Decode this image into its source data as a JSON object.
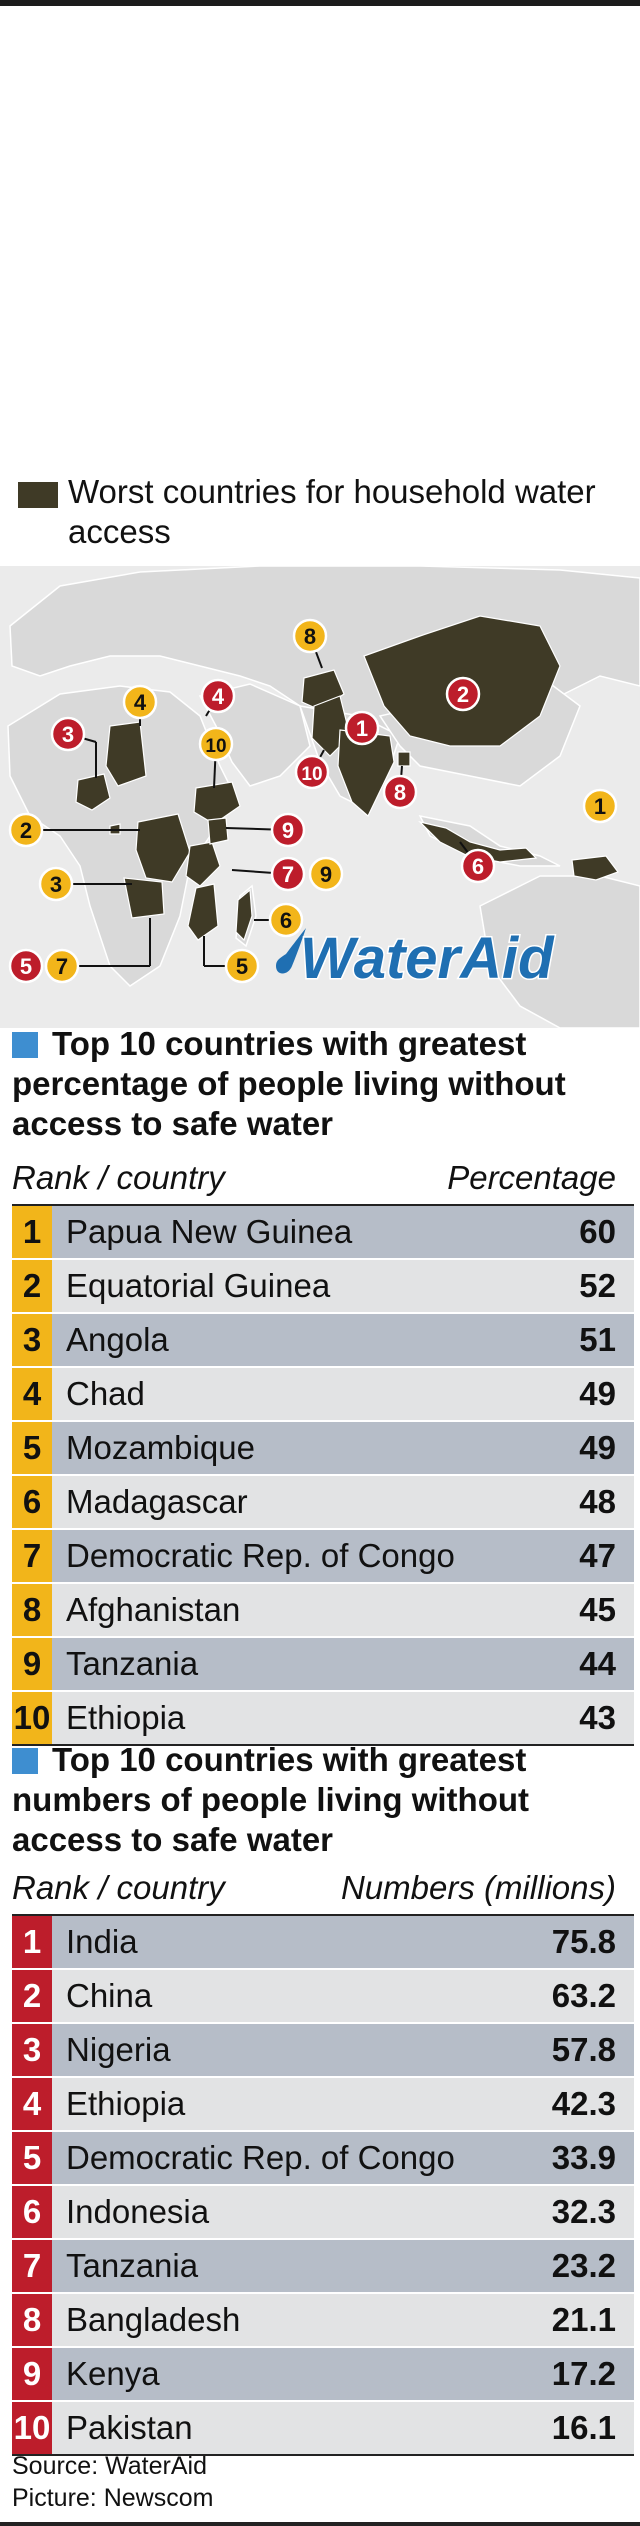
{
  "legend": {
    "text": "Worst countries for household water access",
    "swatch_color": "#3f3a26"
  },
  "logo": {
    "text": "WaterAid",
    "color": "#1f6fb2"
  },
  "map_markers": [
    {
      "label": "1",
      "color": "yellow"
    },
    {
      "label": "2",
      "color": "red"
    },
    {
      "label": "3",
      "color": "red"
    },
    {
      "label": "4",
      "color": "yellow"
    },
    {
      "label": "4",
      "color": "red"
    },
    {
      "label": "10",
      "color": "yellow"
    },
    {
      "label": "8",
      "color": "yellow"
    },
    {
      "label": "1",
      "color": "red"
    },
    {
      "label": "10",
      "color": "red"
    },
    {
      "label": "8",
      "color": "red"
    },
    {
      "label": "2",
      "color": "yellow"
    },
    {
      "label": "9",
      "color": "red"
    },
    {
      "label": "3",
      "color": "yellow"
    },
    {
      "label": "7",
      "color": "red"
    },
    {
      "label": "9",
      "color": "yellow"
    },
    {
      "label": "6",
      "color": "yellow"
    },
    {
      "label": "6",
      "color": "red"
    },
    {
      "label": "5",
      "color": "red"
    },
    {
      "label": "7",
      "color": "yellow"
    },
    {
      "label": "5",
      "color": "yellow"
    }
  ],
  "colors": {
    "yellow": "#f2b51a",
    "red": "#bd1d2b",
    "land": "#d9d9d9",
    "highlight": "#3f3a26",
    "ocean": "#ebebeb",
    "title_square": "#3e8ed0"
  },
  "chart_data": [
    {
      "type": "table",
      "title": "Top 10 countries with greatest percentage of people living without access to safe water",
      "col_rank": "Rank / country",
      "col_value": "Percentage",
      "rows": [
        {
          "rank": "1",
          "country": "Papua New Guinea",
          "value": "60"
        },
        {
          "rank": "2",
          "country": "Equatorial Guinea",
          "value": "52"
        },
        {
          "rank": "3",
          "country": "Angola",
          "value": "51"
        },
        {
          "rank": "4",
          "country": "Chad",
          "value": "49"
        },
        {
          "rank": "5",
          "country": "Mozambique",
          "value": "49"
        },
        {
          "rank": "6",
          "country": "Madagascar",
          "value": "48"
        },
        {
          "rank": "7",
          "country": "Democratic Rep. of Congo",
          "value": "47"
        },
        {
          "rank": "8",
          "country": "Afghanistan",
          "value": "45"
        },
        {
          "rank": "9",
          "country": "Tanzania",
          "value": "44"
        },
        {
          "rank": "10",
          "country": "Ethiopia",
          "value": "43"
        }
      ]
    },
    {
      "type": "table",
      "title": "Top 10 countries with greatest numbers of people living without access to safe water",
      "col_rank": "Rank / country",
      "col_value": "Numbers (millions)",
      "rows": [
        {
          "rank": "1",
          "country": "India",
          "value": "75.8"
        },
        {
          "rank": "2",
          "country": "China",
          "value": "63.2"
        },
        {
          "rank": "3",
          "country": "Nigeria",
          "value": "57.8"
        },
        {
          "rank": "4",
          "country": "Ethiopia",
          "value": "42.3"
        },
        {
          "rank": "5",
          "country": "Democratic Rep. of Congo",
          "value": "33.9"
        },
        {
          "rank": "6",
          "country": "Indonesia",
          "value": "32.3"
        },
        {
          "rank": "7",
          "country": "Tanzania",
          "value": "23.2"
        },
        {
          "rank": "8",
          "country": "Bangladesh",
          "value": "21.1"
        },
        {
          "rank": "9",
          "country": "Kenya",
          "value": "17.2"
        },
        {
          "rank": "10",
          "country": "Pakistan",
          "value": "16.1"
        }
      ]
    }
  ],
  "footer": {
    "source": "Source: WaterAid",
    "picture": "Picture: Newscom"
  }
}
